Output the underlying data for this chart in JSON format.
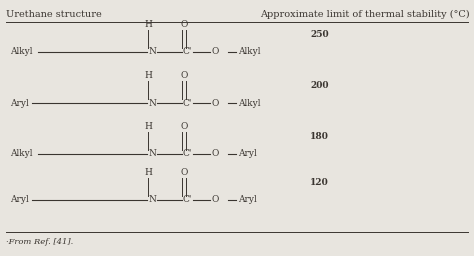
{
  "title_left": "Urethane structure",
  "title_right": "Approximate limit of thermal stability (°C)",
  "background_color": "#e8e5df",
  "text_color": "#3a3530",
  "footnote": "·From Ref. [41].",
  "rows": [
    {
      "left_group": "Alkyl",
      "right_group": "Alkyl",
      "h_italic": false,
      "temp": "250"
    },
    {
      "left_group": "Aryl",
      "right_group": "Alkyl",
      "h_italic": false,
      "temp": "200"
    },
    {
      "left_group": "Alkyl",
      "right_group": "Aryl",
      "h_italic": false,
      "temp": "180"
    },
    {
      "left_group": "Aryl",
      "right_group": "Aryl",
      "h_italic": false,
      "temp": "120"
    }
  ],
  "fig_width": 4.74,
  "fig_height": 2.56,
  "dpi": 100
}
